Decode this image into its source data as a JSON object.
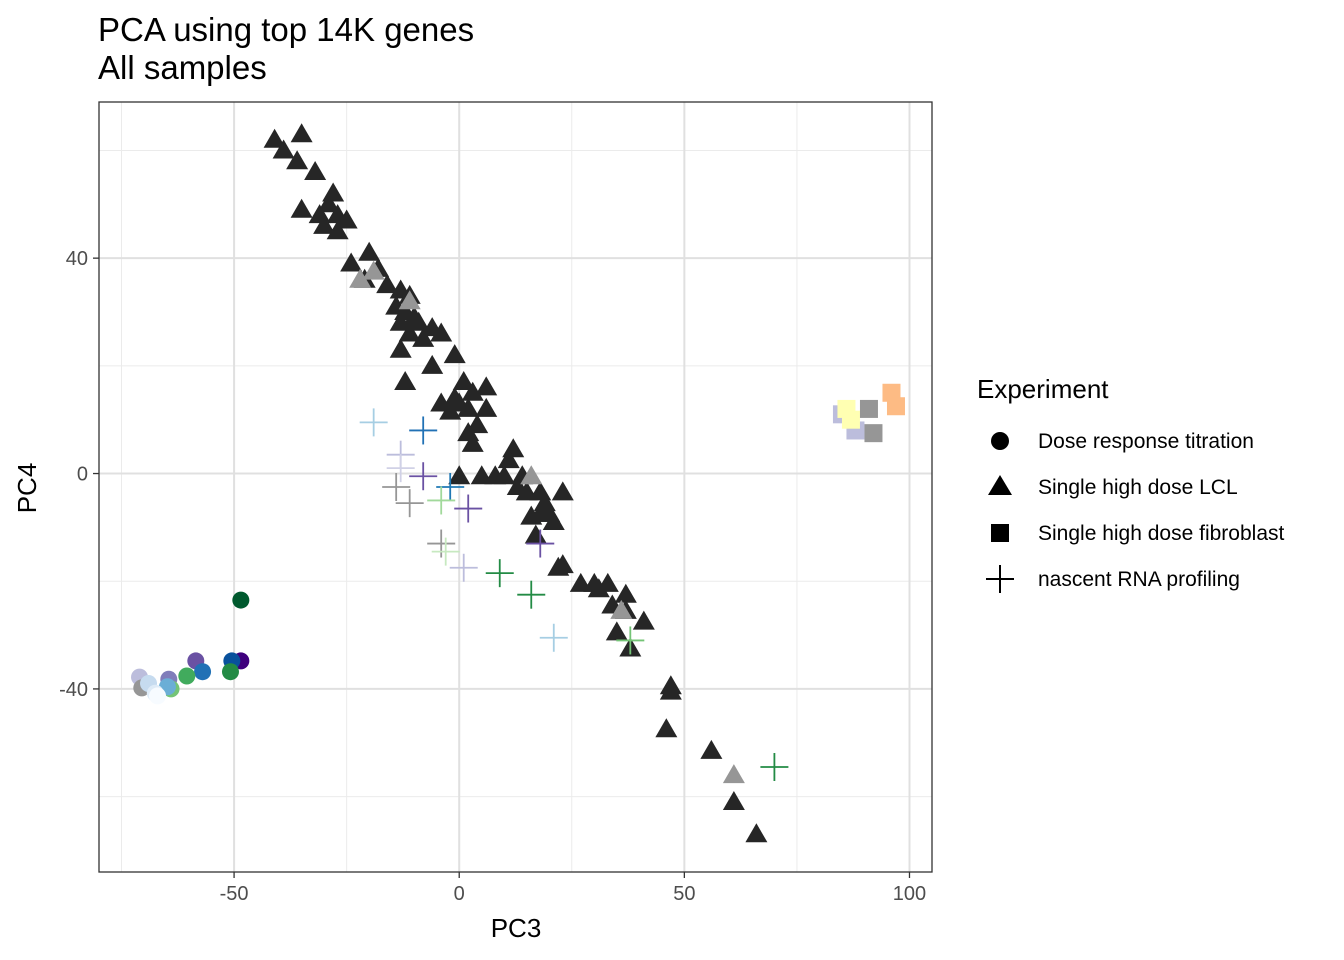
{
  "chart_data": {
    "type": "scatter",
    "title": "PCA using top 14K genes",
    "subtitle": "All samples",
    "xlabel": "PC3",
    "ylabel": "PC4",
    "xlim": [
      -80,
      105
    ],
    "ylim": [
      -74,
      69
    ],
    "x_ticks": [
      -50,
      0,
      50,
      100
    ],
    "y_ticks": [
      -40,
      0,
      40
    ],
    "x_minor": [
      -75,
      -25,
      25,
      75
    ],
    "y_minor": [
      -60,
      -20,
      20,
      60
    ],
    "grid": true,
    "legend": {
      "title": "Experiment",
      "position": "right",
      "entries": [
        {
          "label": "Dose response titration",
          "shape": "circle"
        },
        {
          "label": "Single high dose LCL",
          "shape": "triangle"
        },
        {
          "label": "Single high dose fibroblast",
          "shape": "square"
        },
        {
          "label": "nascent RNA profiling",
          "shape": "plus"
        }
      ]
    },
    "series": [
      {
        "name": "Dose response titration",
        "shape": "circle",
        "points": [
          {
            "x": -48.5,
            "y": -23.5,
            "color": "#00592e"
          },
          {
            "x": -48.5,
            "y": -34.8,
            "color": "#3f007d"
          },
          {
            "x": -50.5,
            "y": -34.8,
            "color": "#08519c"
          },
          {
            "x": -50.8,
            "y": -36.8,
            "color": "#238b45"
          },
          {
            "x": -58.5,
            "y": -34.8,
            "color": "#6a51a3"
          },
          {
            "x": -57.0,
            "y": -36.8,
            "color": "#2171b5"
          },
          {
            "x": -60.5,
            "y": -37.6,
            "color": "#41ab5d"
          },
          {
            "x": -64.5,
            "y": -38.2,
            "color": "#807dba"
          },
          {
            "x": -64.0,
            "y": -40.0,
            "color": "#74c476"
          },
          {
            "x": -64.8,
            "y": -39.6,
            "color": "#6baed6"
          },
          {
            "x": -71.0,
            "y": -37.8,
            "color": "#bcbddc"
          },
          {
            "x": -70.5,
            "y": -39.8,
            "color": "#969696"
          },
          {
            "x": -69.0,
            "y": -39.0,
            "color": "#c6dbef"
          },
          {
            "x": -67.5,
            "y": -40.8,
            "color": "#deebf7"
          },
          {
            "x": -67.0,
            "y": -41.3,
            "color": "#f7fbff"
          }
        ]
      },
      {
        "name": "Single high dose LCL",
        "shape": "triangle",
        "points": [
          {
            "x": -41,
            "y": 62,
            "color": "#262626"
          },
          {
            "x": -35,
            "y": 63,
            "color": "#262626"
          },
          {
            "x": -39,
            "y": 60,
            "color": "#262626"
          },
          {
            "x": -36,
            "y": 58,
            "color": "#262626"
          },
          {
            "x": -32,
            "y": 56,
            "color": "#262626"
          },
          {
            "x": -28,
            "y": 52,
            "color": "#262626"
          },
          {
            "x": -29,
            "y": 50,
            "color": "#262626"
          },
          {
            "x": -35,
            "y": 49,
            "color": "#262626"
          },
          {
            "x": -31,
            "y": 48,
            "color": "#262626"
          },
          {
            "x": -27,
            "y": 48,
            "color": "#262626"
          },
          {
            "x": -25,
            "y": 47,
            "color": "#262626"
          },
          {
            "x": -30,
            "y": 46,
            "color": "#262626"
          },
          {
            "x": -27,
            "y": 45,
            "color": "#262626"
          },
          {
            "x": -20,
            "y": 41,
            "color": "#262626"
          },
          {
            "x": -24,
            "y": 39,
            "color": "#262626"
          },
          {
            "x": -18,
            "y": 38,
            "color": "#262626"
          },
          {
            "x": -21,
            "y": 36,
            "color": "#262626"
          },
          {
            "x": -16,
            "y": 35,
            "color": "#262626"
          },
          {
            "x": -13,
            "y": 34,
            "color": "#262626"
          },
          {
            "x": -11,
            "y": 33,
            "color": "#262626"
          },
          {
            "x": -14,
            "y": 31,
            "color": "#262626"
          },
          {
            "x": -12,
            "y": 30,
            "color": "#262626"
          },
          {
            "x": -10,
            "y": 29,
            "color": "#262626"
          },
          {
            "x": -13,
            "y": 28,
            "color": "#262626"
          },
          {
            "x": -9,
            "y": 28,
            "color": "#262626"
          },
          {
            "x": -6,
            "y": 27,
            "color": "#262626"
          },
          {
            "x": -4,
            "y": 26,
            "color": "#262626"
          },
          {
            "x": -11,
            "y": 26,
            "color": "#262626"
          },
          {
            "x": -8,
            "y": 25,
            "color": "#262626"
          },
          {
            "x": -13,
            "y": 23,
            "color": "#262626"
          },
          {
            "x": -1,
            "y": 22,
            "color": "#262626"
          },
          {
            "x": -6,
            "y": 20,
            "color": "#262626"
          },
          {
            "x": -12,
            "y": 17,
            "color": "#262626"
          },
          {
            "x": 1,
            "y": 17,
            "color": "#262626"
          },
          {
            "x": 6,
            "y": 16,
            "color": "#262626"
          },
          {
            "x": 3,
            "y": 15,
            "color": "#262626"
          },
          {
            "x": -1,
            "y": 14,
            "color": "#262626"
          },
          {
            "x": -4,
            "y": 13,
            "color": "#262626"
          },
          {
            "x": 0,
            "y": 13,
            "color": "#262626"
          },
          {
            "x": 2,
            "y": 12,
            "color": "#262626"
          },
          {
            "x": -2,
            "y": 11.5,
            "color": "#262626"
          },
          {
            "x": 6,
            "y": 12,
            "color": "#262626"
          },
          {
            "x": 4,
            "y": 9,
            "color": "#262626"
          },
          {
            "x": 2,
            "y": 7.5,
            "color": "#262626"
          },
          {
            "x": 3,
            "y": 5.5,
            "color": "#262626"
          },
          {
            "x": 12,
            "y": 4.5,
            "color": "#262626"
          },
          {
            "x": 11,
            "y": 2.5,
            "color": "#262626"
          },
          {
            "x": 0,
            "y": -0.5,
            "color": "#262626"
          },
          {
            "x": 5,
            "y": -0.5,
            "color": "#262626"
          },
          {
            "x": 8,
            "y": -0.5,
            "color": "#262626"
          },
          {
            "x": 10,
            "y": -0.5,
            "color": "#262626"
          },
          {
            "x": 14,
            "y": -0.5,
            "color": "#262626"
          },
          {
            "x": 13,
            "y": -2.5,
            "color": "#262626"
          },
          {
            "x": 15,
            "y": -3.5,
            "color": "#262626"
          },
          {
            "x": 18,
            "y": -3.5,
            "color": "#262626"
          },
          {
            "x": 23,
            "y": -3.5,
            "color": "#262626"
          },
          {
            "x": 19,
            "y": -5.5,
            "color": "#262626"
          },
          {
            "x": 18,
            "y": -7.5,
            "color": "#262626"
          },
          {
            "x": 20,
            "y": -7.5,
            "color": "#262626"
          },
          {
            "x": 16,
            "y": -8,
            "color": "#262626"
          },
          {
            "x": 21,
            "y": -9,
            "color": "#262626"
          },
          {
            "x": 17,
            "y": -11.5,
            "color": "#262626"
          },
          {
            "x": 23,
            "y": -17,
            "color": "#262626"
          },
          {
            "x": 22,
            "y": -17.5,
            "color": "#262626"
          },
          {
            "x": 27,
            "y": -20.5,
            "color": "#262626"
          },
          {
            "x": 30,
            "y": -20.5,
            "color": "#262626"
          },
          {
            "x": 33,
            "y": -20.5,
            "color": "#262626"
          },
          {
            "x": 31,
            "y": -21.5,
            "color": "#262626"
          },
          {
            "x": 37,
            "y": -22.5,
            "color": "#262626"
          },
          {
            "x": 34,
            "y": -24.5,
            "color": "#262626"
          },
          {
            "x": 37,
            "y": -25.5,
            "color": "#262626"
          },
          {
            "x": 41,
            "y": -27.5,
            "color": "#262626"
          },
          {
            "x": 35,
            "y": -29.5,
            "color": "#262626"
          },
          {
            "x": 38,
            "y": -32.5,
            "color": "#262626"
          },
          {
            "x": 47,
            "y": -39.5,
            "color": "#262626"
          },
          {
            "x": 47,
            "y": -40.5,
            "color": "#262626"
          },
          {
            "x": 46,
            "y": -47.5,
            "color": "#262626"
          },
          {
            "x": 56,
            "y": -51.5,
            "color": "#262626"
          },
          {
            "x": 61,
            "y": -61,
            "color": "#262626"
          },
          {
            "x": 66,
            "y": -67,
            "color": "#262626"
          },
          {
            "x": -22,
            "y": 36,
            "color": "#969696"
          },
          {
            "x": -19,
            "y": 37.5,
            "color": "#969696"
          },
          {
            "x": -11,
            "y": 32,
            "color": "#969696"
          },
          {
            "x": 16,
            "y": -0.5,
            "color": "#969696"
          },
          {
            "x": 36,
            "y": -25.5,
            "color": "#969696"
          },
          {
            "x": 61,
            "y": -56,
            "color": "#969696"
          }
        ]
      },
      {
        "name": "Single high dose fibroblast",
        "shape": "square",
        "points": [
          {
            "x": 85,
            "y": 11,
            "color": "#bcbddc"
          },
          {
            "x": 88,
            "y": 8,
            "color": "#bcbddc"
          },
          {
            "x": 86,
            "y": 12,
            "color": "#ffffb2"
          },
          {
            "x": 87,
            "y": 10,
            "color": "#ffffb2"
          },
          {
            "x": 91,
            "y": 12,
            "color": "#969696"
          },
          {
            "x": 92,
            "y": 7.5,
            "color": "#969696"
          },
          {
            "x": 96,
            "y": 15,
            "color": "#fdbb84"
          },
          {
            "x": 97,
            "y": 12.5,
            "color": "#fdbb84"
          }
        ]
      },
      {
        "name": "nascent RNA profiling",
        "shape": "plus",
        "points": [
          {
            "x": -19,
            "y": 9.5,
            "color": "#a6cee3"
          },
          {
            "x": -8,
            "y": 8,
            "color": "#2171b5"
          },
          {
            "x": -13,
            "y": 3.5,
            "color": "#bcbddc"
          },
          {
            "x": -13,
            "y": 1,
            "color": "#d0d1e6"
          },
          {
            "x": -8,
            "y": -0.5,
            "color": "#6a51a3"
          },
          {
            "x": -14,
            "y": -2.5,
            "color": "#969696"
          },
          {
            "x": -11,
            "y": -5.5,
            "color": "#969696"
          },
          {
            "x": -2,
            "y": -2.5,
            "color": "#1f78b4"
          },
          {
            "x": -4,
            "y": -5,
            "color": "#a1d99b"
          },
          {
            "x": 2,
            "y": -6.5,
            "color": "#6a51a3"
          },
          {
            "x": -4,
            "y": -13,
            "color": "#969696"
          },
          {
            "x": -3,
            "y": -14.5,
            "color": "#c7e9c0"
          },
          {
            "x": 1,
            "y": -17.5,
            "color": "#bcbddc"
          },
          {
            "x": 9,
            "y": -18.5,
            "color": "#238b45"
          },
          {
            "x": 16,
            "y": -22.5,
            "color": "#238b45"
          },
          {
            "x": 18,
            "y": -13,
            "color": "#6a51a3"
          },
          {
            "x": 21,
            "y": -30.5,
            "color": "#a6cee3"
          },
          {
            "x": 38,
            "y": -31,
            "color": "#74c476"
          },
          {
            "x": 70,
            "y": -54.5,
            "color": "#238b45"
          }
        ]
      }
    ]
  }
}
